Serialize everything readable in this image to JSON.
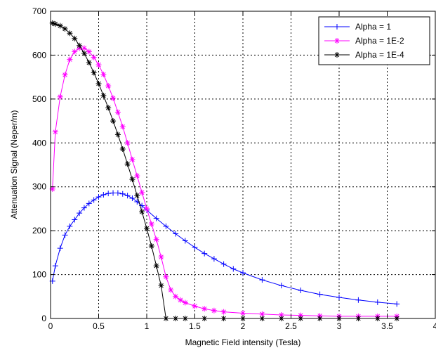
{
  "chart_data": {
    "type": "line",
    "xlabel": "Magnetic Field intensity (Tesla)",
    "ylabel": "Attenuation Signal (Neper/m)",
    "xlim": [
      0,
      4
    ],
    "ylim": [
      0,
      700
    ],
    "xticks": [
      0,
      0.5,
      1,
      1.5,
      2,
      2.5,
      3,
      3.5,
      4
    ],
    "xtick_labels": [
      "0",
      "0.5",
      "1",
      "1.5",
      "2",
      "2.5",
      "3",
      "3.5",
      "4"
    ],
    "yticks": [
      0,
      100,
      200,
      300,
      400,
      500,
      600,
      700
    ],
    "ytick_labels": [
      "0",
      "100",
      "200",
      "300",
      "400",
      "500",
      "600",
      "700"
    ],
    "grid": true,
    "legend_position": "top-right",
    "series": [
      {
        "name": "Alpha = 1",
        "color": "#0000ff",
        "marker": "plus",
        "x": [
          0.02,
          0.05,
          0.1,
          0.15,
          0.2,
          0.25,
          0.3,
          0.35,
          0.4,
          0.45,
          0.5,
          0.55,
          0.6,
          0.65,
          0.7,
          0.75,
          0.8,
          0.85,
          0.9,
          0.95,
          1.0,
          1.1,
          1.2,
          1.3,
          1.4,
          1.5,
          1.6,
          1.7,
          1.8,
          1.9,
          2.0,
          2.2,
          2.4,
          2.6,
          2.8,
          3.0,
          3.2,
          3.4,
          3.6
        ],
        "y": [
          85,
          120,
          160,
          190,
          210,
          225,
          240,
          252,
          262,
          270,
          277,
          282,
          285,
          286,
          286,
          284,
          280,
          274,
          266,
          257,
          247,
          228,
          210,
          193,
          177,
          162,
          148,
          136,
          124,
          113,
          104,
          88,
          75,
          64,
          55,
          48,
          42,
          37,
          33
        ]
      },
      {
        "name": "Alpha = 1E-2",
        "color": "#ff00ff",
        "marker": "star",
        "x": [
          0.02,
          0.05,
          0.1,
          0.15,
          0.2,
          0.25,
          0.3,
          0.35,
          0.4,
          0.45,
          0.5,
          0.55,
          0.6,
          0.65,
          0.7,
          0.75,
          0.8,
          0.85,
          0.9,
          0.95,
          1.0,
          1.05,
          1.1,
          1.15,
          1.2,
          1.25,
          1.3,
          1.35,
          1.4,
          1.5,
          1.6,
          1.7,
          1.8,
          2.0,
          2.2,
          2.4,
          2.6,
          2.8,
          3.0,
          3.2,
          3.4,
          3.6
        ],
        "y": [
          295,
          425,
          505,
          555,
          590,
          608,
          616,
          616,
          608,
          595,
          578,
          556,
          530,
          502,
          470,
          437,
          400,
          362,
          325,
          287,
          250,
          215,
          180,
          140,
          95,
          65,
          50,
          42,
          36,
          28,
          22,
          18,
          15,
          12,
          10,
          8,
          7,
          6,
          5,
          5,
          5,
          5
        ]
      },
      {
        "name": "Alpha = 1E-4",
        "color": "#000000",
        "marker": "star",
        "x": [
          0.02,
          0.05,
          0.1,
          0.15,
          0.2,
          0.25,
          0.3,
          0.35,
          0.4,
          0.45,
          0.5,
          0.55,
          0.6,
          0.65,
          0.7,
          0.75,
          0.8,
          0.85,
          0.9,
          0.95,
          1.0,
          1.05,
          1.1,
          1.15,
          1.2,
          1.3,
          1.4,
          1.6,
          1.8,
          2.0,
          2.2,
          2.4,
          2.6,
          2.8,
          3.0,
          3.2,
          3.4,
          3.6
        ],
        "y": [
          673,
          671,
          667,
          660,
          650,
          638,
          622,
          604,
          583,
          560,
          535,
          508,
          480,
          450,
          419,
          386,
          352,
          317,
          280,
          243,
          205,
          165,
          120,
          75,
          0,
          0,
          0,
          0,
          0,
          0,
          0,
          0,
          0,
          0,
          0,
          0,
          0,
          0
        ]
      }
    ]
  }
}
